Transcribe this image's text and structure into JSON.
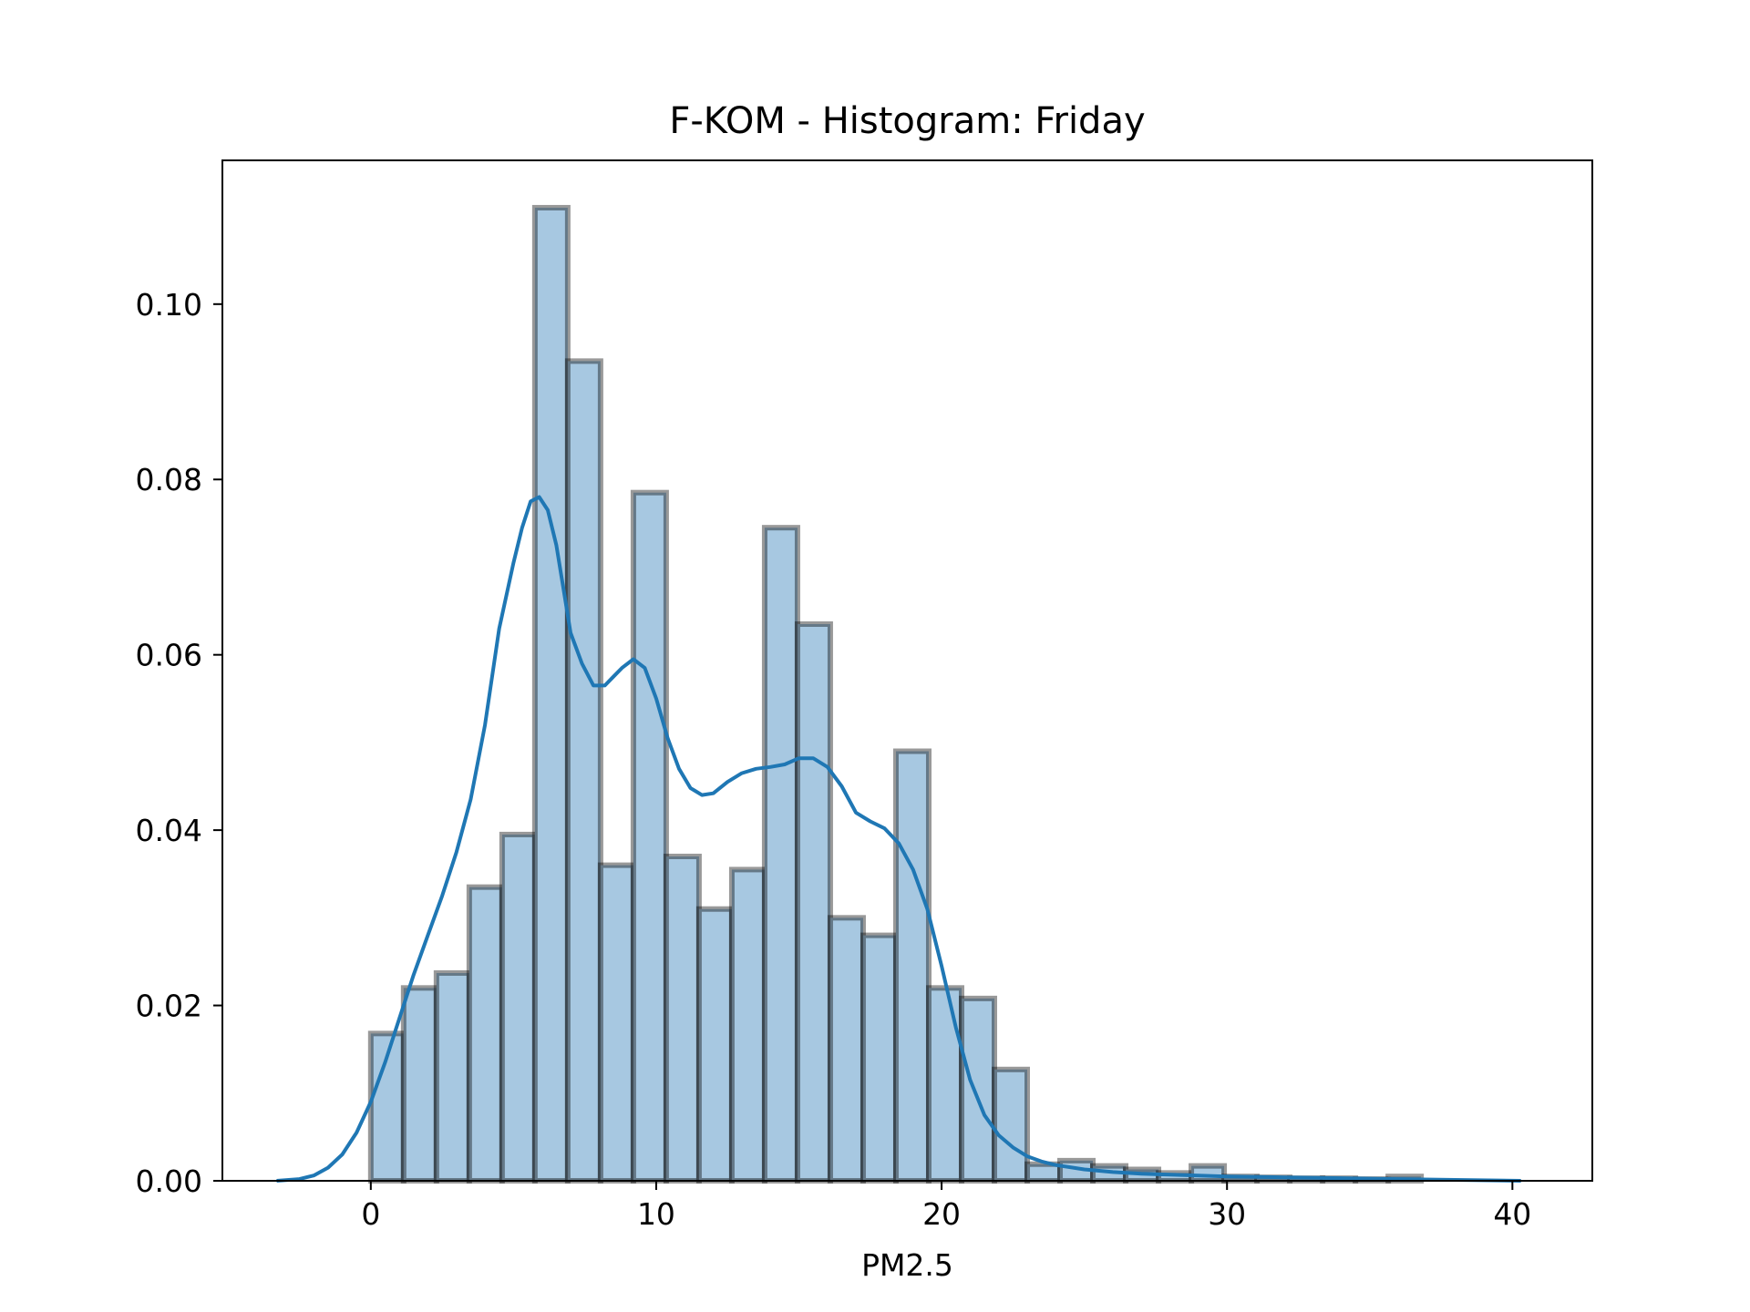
{
  "chart_data": {
    "type": "bar",
    "title": "F-KOM - Histogram: Friday",
    "xlabel": "PM2.5",
    "ylabel": "",
    "xlim": [
      -5.2,
      42.8
    ],
    "ylim": [
      0,
      0.1164
    ],
    "xticks": [
      0,
      10,
      20,
      30,
      40
    ],
    "yticks": [
      0.0,
      0.02,
      0.04,
      0.06,
      0.08,
      0.1
    ],
    "ytick_labels": [
      "0.00",
      "0.02",
      "0.04",
      "0.06",
      "0.08",
      "0.10"
    ],
    "grid": false,
    "legend": "none",
    "bin_edges": [
      0.0,
      1.15,
      2.3,
      3.45,
      4.6,
      5.75,
      6.9,
      8.05,
      9.2,
      10.35,
      11.5,
      12.65,
      13.8,
      14.95,
      16.1,
      17.25,
      18.4,
      19.55,
      20.7,
      21.85,
      23.0,
      24.15,
      25.3,
      26.45,
      27.6,
      28.75,
      29.9,
      31.05,
      32.2,
      33.35,
      34.5,
      35.65,
      36.8
    ],
    "density": [
      0.0168,
      0.022,
      0.0237,
      0.0335,
      0.0395,
      0.111,
      0.0935,
      0.036,
      0.0785,
      0.037,
      0.031,
      0.0355,
      0.0745,
      0.0635,
      0.03,
      0.028,
      0.049,
      0.022,
      0.0208,
      0.0127,
      0.0019,
      0.0023,
      0.0017,
      0.0013,
      0.0009,
      0.0017,
      0.0005,
      0.0004,
      0.0003,
      0.0003,
      0.0002,
      0.0005
    ],
    "kde": {
      "x": [
        -3.3,
        -2.5,
        -2.0,
        -1.5,
        -1.0,
        -0.5,
        0.0,
        0.5,
        1.0,
        1.5,
        2.0,
        2.5,
        3.0,
        3.5,
        4.0,
        4.5,
        5.0,
        5.3,
        5.6,
        5.9,
        6.2,
        6.5,
        6.8,
        7.0,
        7.4,
        7.8,
        8.2,
        8.5,
        8.8,
        9.2,
        9.6,
        10.0,
        10.4,
        10.8,
        11.2,
        11.6,
        12.0,
        12.5,
        13.0,
        13.5,
        14.0,
        14.5,
        15.0,
        15.5,
        16.0,
        16.5,
        17.0,
        17.5,
        18.0,
        18.5,
        19.0,
        19.5,
        20.0,
        20.5,
        21.0,
        21.5,
        22.0,
        22.5,
        23.0,
        23.5,
        24.0,
        25.0,
        26.0,
        27.0,
        28.0,
        29.0,
        30.0,
        32.0,
        34.0,
        36.0,
        38.0,
        40.3
      ],
      "y": [
        0.0,
        0.0002,
        0.0006,
        0.0015,
        0.003,
        0.0055,
        0.009,
        0.0135,
        0.0185,
        0.0235,
        0.028,
        0.0325,
        0.0375,
        0.0435,
        0.052,
        0.063,
        0.0705,
        0.0745,
        0.0775,
        0.078,
        0.0765,
        0.0725,
        0.0665,
        0.0625,
        0.059,
        0.0565,
        0.0565,
        0.0575,
        0.0585,
        0.0595,
        0.0585,
        0.055,
        0.0505,
        0.047,
        0.0448,
        0.044,
        0.0442,
        0.0455,
        0.0465,
        0.047,
        0.0472,
        0.0475,
        0.0482,
        0.0482,
        0.0472,
        0.045,
        0.042,
        0.041,
        0.0402,
        0.0385,
        0.0355,
        0.031,
        0.0245,
        0.0175,
        0.0115,
        0.0075,
        0.0052,
        0.0038,
        0.0028,
        0.0022,
        0.0018,
        0.0013,
        0.001,
        0.0008,
        0.0007,
        0.0006,
        0.0005,
        0.0004,
        0.0003,
        0.0002,
        0.0001,
        0.0
      ]
    },
    "colors": {
      "bar_fill": "#a7c8e1",
      "bar_edge": "#000000",
      "kde_line": "#1f77b4",
      "axes": "#000000"
    }
  }
}
